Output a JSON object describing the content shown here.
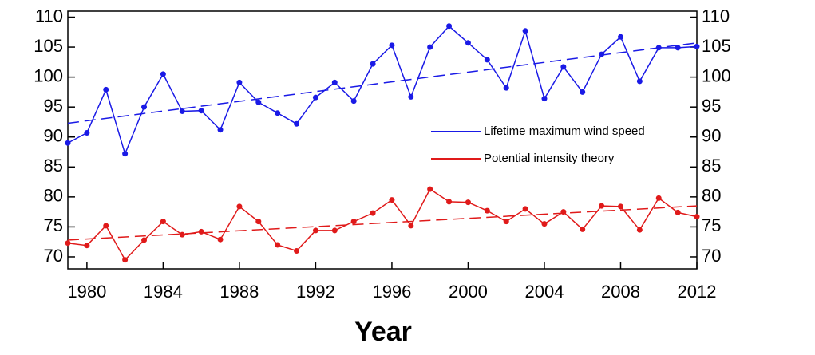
{
  "chart_data": {
    "type": "line",
    "x_label": "Year",
    "x": [
      1979,
      1980,
      1981,
      1982,
      1983,
      1984,
      1985,
      1986,
      1987,
      1988,
      1989,
      1990,
      1991,
      1992,
      1993,
      1994,
      1995,
      1996,
      1997,
      1998,
      1999,
      2000,
      2001,
      2002,
      2003,
      2004,
      2005,
      2006,
      2007,
      2008,
      2009,
      2010,
      2011,
      2012
    ],
    "series": [
      {
        "name": "Lifetime maximum wind speed",
        "color": "#1a1ae6",
        "values": [
          89,
          90.7,
          97.9,
          87.2,
          95,
          100.5,
          94.3,
          94.4,
          91.2,
          99.1,
          95.8,
          94,
          92.2,
          96.6,
          99.1,
          96,
          102.2,
          105.3,
          96.7,
          105,
          108.5,
          105.7,
          102.9,
          98.2,
          107.7,
          96.4,
          101.7,
          97.5,
          103.8,
          106.7,
          99.3,
          104.9,
          104.9,
          105.1
        ]
      },
      {
        "name": "Potential intensity theory",
        "color": "#e01a1a",
        "values": [
          72.3,
          71.9,
          75.2,
          69.5,
          72.8,
          75.9,
          73.7,
          74.2,
          72.9,
          78.4,
          75.9,
          72,
          71,
          74.4,
          74.4,
          75.9,
          77.3,
          79.5,
          75.2,
          81.3,
          79.2,
          79.1,
          77.7,
          75.9,
          78,
          75.5,
          77.5,
          74.6,
          78.5,
          78.4,
          74.5,
          79.8,
          77.4,
          76.7
        ]
      }
    ],
    "trends": [
      {
        "color": "#1a1ae6",
        "x": [
          1979,
          2012
        ],
        "values": [
          92.3,
          105.7
        ]
      },
      {
        "color": "#e01a1a",
        "x": [
          1979,
          2012
        ],
        "values": [
          72.8,
          78.5
        ]
      }
    ],
    "xlim": [
      1979,
      2012
    ],
    "xticks": [
      1980,
      1984,
      1988,
      1992,
      1996,
      2000,
      2004,
      2008,
      2012
    ],
    "ylim": [
      68,
      111
    ],
    "yticks": [
      70,
      75,
      80,
      85,
      90,
      95,
      100,
      105,
      110
    ],
    "y2lim": [
      68,
      111
    ],
    "y2ticks": [
      70,
      75,
      80,
      85,
      90,
      95,
      100,
      105,
      110
    ],
    "legend_position": "center-right"
  }
}
